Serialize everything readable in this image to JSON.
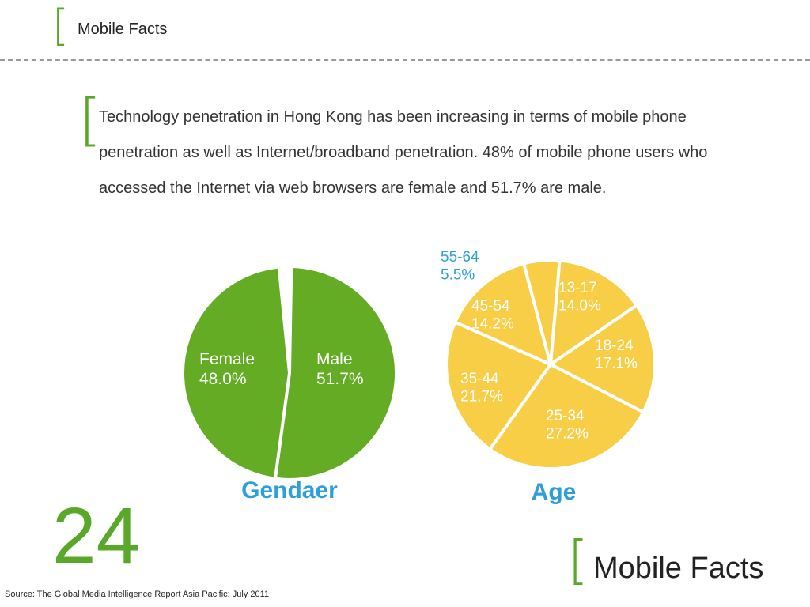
{
  "header": {
    "title": "Mobile Facts"
  },
  "body_text": "Technology penetration in Hong Kong has been increasing in terms of mobile phone penetration as well as Internet/broadband penetration. 48% of mobile phone users who accessed the Internet via web browsers are female and 51.7% are male.",
  "slide_number": "24",
  "footer": {
    "title": "Mobile Facts",
    "source": "Source: The Global Media Intelligence Report Asia Pacific; July 2011"
  },
  "colors": {
    "accent": "#5aa82a",
    "gender_fill": "#63ac23",
    "age_fill": "#f7ce45",
    "label_blue": "#2e9fd8"
  },
  "chart_data": [
    {
      "type": "pie",
      "title": "Gendaer",
      "slices": [
        {
          "label": "Female",
          "value_text": "48.0%",
          "value": 48.0
        },
        {
          "label": "Male",
          "value_text": "51.7%",
          "value": 51.7
        }
      ]
    },
    {
      "type": "pie",
      "title": "Age",
      "slices": [
        {
          "label": "13-17",
          "value_text": "14.0%",
          "value": 14.0
        },
        {
          "label": "18-24",
          "value_text": "17.1%",
          "value": 17.1
        },
        {
          "label": "25-34",
          "value_text": "27.2%",
          "value": 27.2
        },
        {
          "label": "35-44",
          "value_text": "21.7%",
          "value": 21.7
        },
        {
          "label": "45-54",
          "value_text": "14.2%",
          "value": 14.2
        },
        {
          "label": "55-64",
          "value_text": "5.5%",
          "value": 5.5
        }
      ]
    }
  ]
}
